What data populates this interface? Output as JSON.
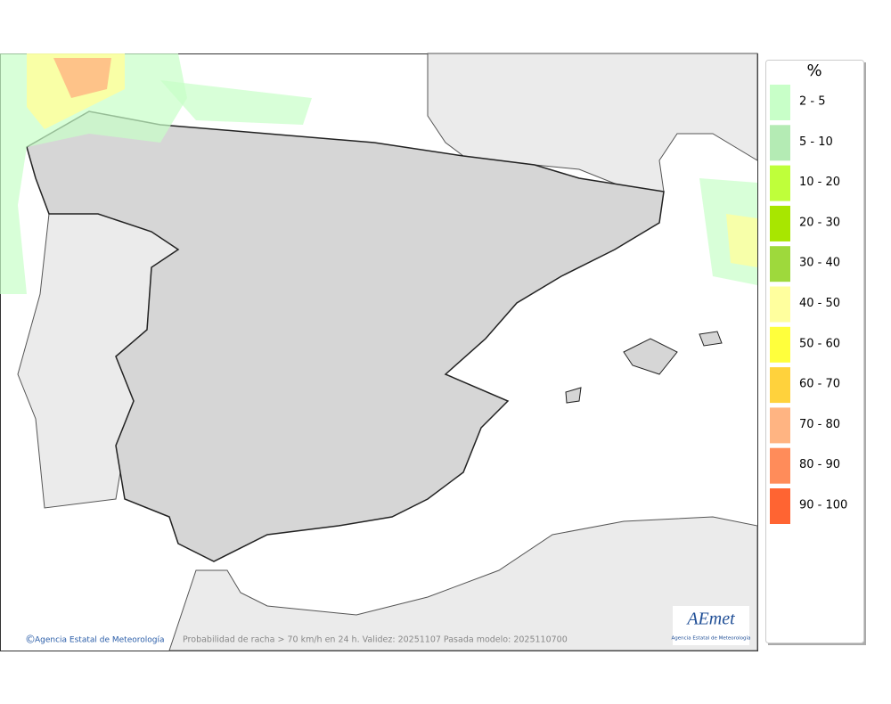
{
  "legend": {
    "title": "%",
    "items": [
      {
        "label": "2 - 5",
        "color": "#c8ffc8"
      },
      {
        "label": "5 - 10",
        "color": "#b4ebb4"
      },
      {
        "label": "10 - 20",
        "color": "#bfff3a"
      },
      {
        "label": "20 - 30",
        "color": "#a8e600"
      },
      {
        "label": "30 - 40",
        "color": "#9ed93c"
      },
      {
        "label": "40 - 50",
        "color": "#ffff9e"
      },
      {
        "label": "50 - 60",
        "color": "#ffff3c"
      },
      {
        "label": "60 - 70",
        "color": "#ffd23c"
      },
      {
        "label": "70 - 80",
        "color": "#ffb482"
      },
      {
        "label": "80 - 90",
        "color": "#ff8c5a"
      },
      {
        "label": "90 - 100",
        "color": "#ff6432"
      }
    ]
  },
  "footer": {
    "credit": "Agencia Estatal de Meteorología",
    "caption": "Probabilidad de racha > 70 km/h en 24 h. Validez: 20251107 Pasada modelo: 2025110700"
  },
  "logo": {
    "name": "AEmet",
    "subtitle": "Agencia Estatal de Meteorología"
  }
}
